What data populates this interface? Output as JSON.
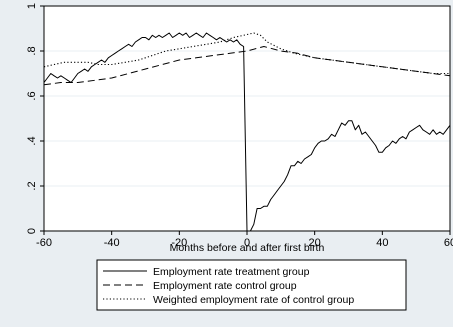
{
  "chart_data": {
    "type": "line",
    "title": "",
    "xlabel": "Months before and after first birth",
    "ylabel": "",
    "xlim": [
      -60,
      60
    ],
    "ylim": [
      0,
      1
    ],
    "xticks": [
      -60,
      -40,
      -20,
      0,
      20,
      40,
      60
    ],
    "yticks": [
      0,
      0.2,
      0.4,
      0.6,
      0.8,
      1
    ],
    "xtick_labels": [
      "-60",
      "-40",
      "-20",
      "0",
      "20",
      "40",
      "60"
    ],
    "ytick_labels": [
      "0",
      ".2",
      ".4",
      ".6",
      ".8",
      "1"
    ],
    "grid": "horizontal",
    "legend_position": "bottom",
    "series": [
      {
        "name": "Employment rate treatment group",
        "style": "solid",
        "color": "#000000",
        "points": [
          [
            -60,
            0.66
          ],
          [
            -59,
            0.68
          ],
          [
            -58,
            0.7
          ],
          [
            -57,
            0.69
          ],
          [
            -56,
            0.68
          ],
          [
            -55,
            0.69
          ],
          [
            -54,
            0.68
          ],
          [
            -53,
            0.67
          ],
          [
            -52,
            0.66
          ],
          [
            -51,
            0.68
          ],
          [
            -50,
            0.7
          ],
          [
            -49,
            0.71
          ],
          [
            -48,
            0.72
          ],
          [
            -47,
            0.71
          ],
          [
            -46,
            0.73
          ],
          [
            -45,
            0.74
          ],
          [
            -44,
            0.75
          ],
          [
            -43,
            0.76
          ],
          [
            -42,
            0.75
          ],
          [
            -41,
            0.77
          ],
          [
            -40,
            0.78
          ],
          [
            -39,
            0.79
          ],
          [
            -38,
            0.8
          ],
          [
            -37,
            0.81
          ],
          [
            -36,
            0.82
          ],
          [
            -35,
            0.83
          ],
          [
            -34,
            0.82
          ],
          [
            -33,
            0.84
          ],
          [
            -32,
            0.85
          ],
          [
            -31,
            0.86
          ],
          [
            -30,
            0.86
          ],
          [
            -29,
            0.85
          ],
          [
            -28,
            0.87
          ],
          [
            -27,
            0.86
          ],
          [
            -26,
            0.87
          ],
          [
            -25,
            0.86
          ],
          [
            -24,
            0.87
          ],
          [
            -23,
            0.88
          ],
          [
            -22,
            0.86
          ],
          [
            -21,
            0.87
          ],
          [
            -20,
            0.88
          ],
          [
            -19,
            0.87
          ],
          [
            -18,
            0.88
          ],
          [
            -17,
            0.86
          ],
          [
            -16,
            0.87
          ],
          [
            -15,
            0.88
          ],
          [
            -14,
            0.87
          ],
          [
            -13,
            0.86
          ],
          [
            -12,
            0.88
          ],
          [
            -11,
            0.87
          ],
          [
            -10,
            0.86
          ],
          [
            -9,
            0.85
          ],
          [
            -8,
            0.86
          ],
          [
            -7,
            0.85
          ],
          [
            -6,
            0.84
          ],
          [
            -5,
            0.85
          ],
          [
            -4,
            0.84
          ],
          [
            -3,
            0.85
          ],
          [
            -2,
            0.83
          ],
          [
            -1,
            0.82
          ],
          [
            0,
            0.0
          ],
          [
            1,
            0.0
          ],
          [
            2,
            0.03
          ],
          [
            3,
            0.1
          ],
          [
            4,
            0.1
          ],
          [
            5,
            0.11
          ],
          [
            6,
            0.11
          ],
          [
            7,
            0.14
          ],
          [
            8,
            0.16
          ],
          [
            9,
            0.18
          ],
          [
            10,
            0.2
          ],
          [
            11,
            0.22
          ],
          [
            12,
            0.25
          ],
          [
            13,
            0.29
          ],
          [
            14,
            0.29
          ],
          [
            15,
            0.31
          ],
          [
            16,
            0.3
          ],
          [
            17,
            0.32
          ],
          [
            18,
            0.33
          ],
          [
            19,
            0.34
          ],
          [
            20,
            0.37
          ],
          [
            21,
            0.39
          ],
          [
            22,
            0.4
          ],
          [
            23,
            0.4
          ],
          [
            24,
            0.41
          ],
          [
            25,
            0.43
          ],
          [
            26,
            0.42
          ],
          [
            27,
            0.45
          ],
          [
            28,
            0.48
          ],
          [
            29,
            0.47
          ],
          [
            30,
            0.49
          ],
          [
            31,
            0.49
          ],
          [
            32,
            0.45
          ],
          [
            33,
            0.47
          ],
          [
            34,
            0.43
          ],
          [
            35,
            0.44
          ],
          [
            36,
            0.42
          ],
          [
            37,
            0.4
          ],
          [
            38,
            0.38
          ],
          [
            39,
            0.35
          ],
          [
            40,
            0.35
          ],
          [
            41,
            0.37
          ],
          [
            42,
            0.38
          ],
          [
            43,
            0.4
          ],
          [
            44,
            0.39
          ],
          [
            45,
            0.41
          ],
          [
            46,
            0.42
          ],
          [
            47,
            0.41
          ],
          [
            48,
            0.44
          ],
          [
            49,
            0.45
          ],
          [
            50,
            0.46
          ],
          [
            51,
            0.47
          ],
          [
            52,
            0.45
          ],
          [
            53,
            0.44
          ],
          [
            54,
            0.43
          ],
          [
            55,
            0.45
          ],
          [
            56,
            0.43
          ],
          [
            57,
            0.44
          ],
          [
            58,
            0.43
          ],
          [
            59,
            0.45
          ],
          [
            60,
            0.47
          ]
        ]
      },
      {
        "name": "Employment rate control group",
        "style": "dashed",
        "color": "#000000",
        "points": [
          [
            -60,
            0.65
          ],
          [
            -55,
            0.66
          ],
          [
            -50,
            0.66
          ],
          [
            -45,
            0.67
          ],
          [
            -40,
            0.68
          ],
          [
            -35,
            0.7
          ],
          [
            -30,
            0.72
          ],
          [
            -25,
            0.74
          ],
          [
            -20,
            0.76
          ],
          [
            -15,
            0.77
          ],
          [
            -10,
            0.78
          ],
          [
            -5,
            0.79
          ],
          [
            0,
            0.8
          ],
          [
            5,
            0.82
          ],
          [
            10,
            0.8
          ],
          [
            15,
            0.79
          ],
          [
            20,
            0.77
          ],
          [
            25,
            0.76
          ],
          [
            30,
            0.75
          ],
          [
            35,
            0.74
          ],
          [
            40,
            0.73
          ],
          [
            45,
            0.72
          ],
          [
            50,
            0.71
          ],
          [
            55,
            0.7
          ],
          [
            60,
            0.69
          ]
        ]
      },
      {
        "name": "Weighted employment rate of control group",
        "style": "dotted",
        "color": "#000000",
        "points": [
          [
            -60,
            0.73
          ],
          [
            -57,
            0.74
          ],
          [
            -54,
            0.75
          ],
          [
            -50,
            0.75
          ],
          [
            -47,
            0.75
          ],
          [
            -44,
            0.74
          ],
          [
            -40,
            0.74
          ],
          [
            -36,
            0.75
          ],
          [
            -32,
            0.76
          ],
          [
            -28,
            0.78
          ],
          [
            -24,
            0.8
          ],
          [
            -20,
            0.81
          ],
          [
            -16,
            0.82
          ],
          [
            -12,
            0.83
          ],
          [
            -8,
            0.84
          ],
          [
            -4,
            0.86
          ],
          [
            -1,
            0.87
          ],
          [
            2,
            0.88
          ],
          [
            4,
            0.87
          ],
          [
            6,
            0.84
          ],
          [
            10,
            0.81
          ],
          [
            14,
            0.79
          ],
          [
            20,
            0.77
          ],
          [
            25,
            0.76
          ],
          [
            30,
            0.75
          ],
          [
            35,
            0.74
          ],
          [
            40,
            0.73
          ],
          [
            45,
            0.72
          ],
          [
            50,
            0.71
          ],
          [
            55,
            0.7
          ],
          [
            60,
            0.7
          ]
        ]
      }
    ]
  }
}
